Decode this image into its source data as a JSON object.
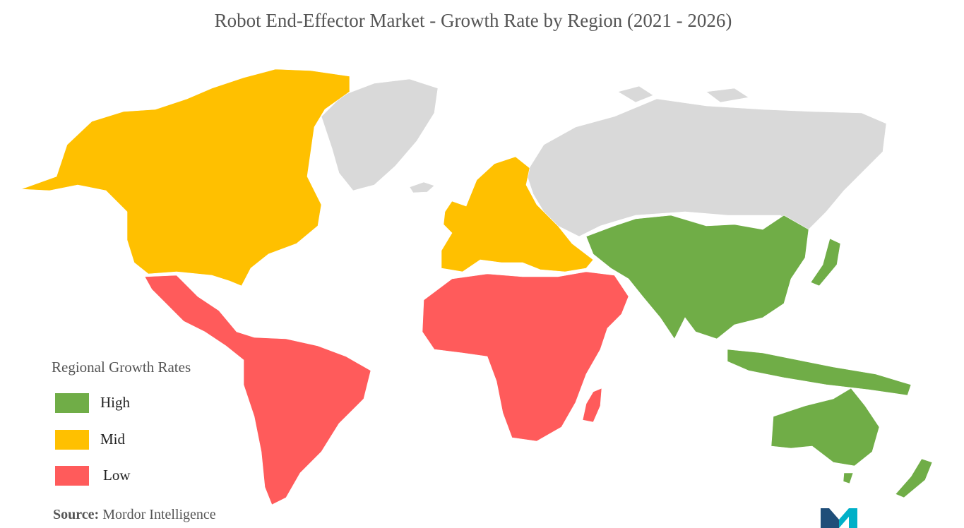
{
  "title": "Robot End-Effector Market - Growth Rate by Region (2021 - 2026)",
  "legend": {
    "title": "Regional Growth Rates",
    "items": [
      {
        "label": "High",
        "color": "#70AD47"
      },
      {
        "label": "Mid",
        "color": "#FFC000"
      },
      {
        "label": "Low",
        "color": "#FF5B5B"
      }
    ]
  },
  "no_data_color": "#D9D9D9",
  "regions": {
    "north_america": "Mid",
    "europe": "Mid",
    "latin_america": "Low",
    "middle_east_africa": "Low",
    "asia_pacific": "High"
  },
  "source": {
    "key": "Source:",
    "value": "Mordor Intelligence"
  },
  "logo_icon": "mordor-intelligence-logo-icon"
}
